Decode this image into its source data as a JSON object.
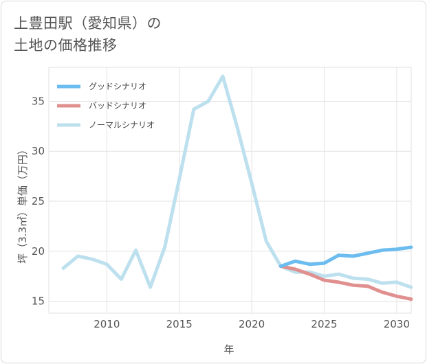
{
  "title": {
    "line1": "上豊田駅（愛知県）の",
    "line2": "土地の価格推移"
  },
  "chart_data": {
    "type": "line",
    "xlabel": "年",
    "ylabel": "坪（3.3㎡）単価（万円）",
    "xlim": [
      2006,
      2031
    ],
    "ylim": [
      13.8,
      38.4
    ],
    "x_ticks": [
      2010,
      2015,
      2020,
      2025,
      2030
    ],
    "y_ticks": [
      15,
      20,
      25,
      30,
      35
    ],
    "grid": true,
    "legend_position": "top-left",
    "series": [
      {
        "name": "ノーマルシナリオ",
        "color": "#bde0ee",
        "x": [
          2007,
          2008,
          2009,
          2010,
          2011,
          2012,
          2013,
          2014,
          2015,
          2016,
          2017,
          2018,
          2019,
          2020,
          2021,
          2022,
          2023,
          2024,
          2025,
          2026,
          2027,
          2028,
          2029,
          2030,
          2031
        ],
        "y": [
          18.3,
          19.5,
          19.2,
          18.7,
          17.2,
          20.1,
          16.4,
          20.4,
          27.2,
          34.2,
          35.0,
          37.5,
          32.4,
          26.8,
          21.0,
          18.5,
          17.9,
          17.9,
          17.5,
          17.7,
          17.3,
          17.2,
          16.8,
          16.9,
          16.4
        ]
      },
      {
        "name": "バッドシナリオ",
        "color": "#e0908f",
        "x": [
          2022,
          2023,
          2024,
          2025,
          2026,
          2027,
          2028,
          2029,
          2030,
          2031
        ],
        "y": [
          18.5,
          18.2,
          17.7,
          17.1,
          16.9,
          16.6,
          16.5,
          15.9,
          15.5,
          15.2
        ]
      },
      {
        "name": "グッドシナリオ",
        "color": "#6cbcf0",
        "x": [
          2022,
          2023,
          2024,
          2025,
          2026,
          2027,
          2028,
          2029,
          2030,
          2031
        ],
        "y": [
          18.5,
          19.0,
          18.7,
          18.8,
          19.6,
          19.5,
          19.8,
          20.1,
          20.2,
          20.4
        ]
      }
    ],
    "legend": [
      "グッドシナリオ",
      "バッドシナリオ",
      "ノーマルシナリオ"
    ]
  }
}
